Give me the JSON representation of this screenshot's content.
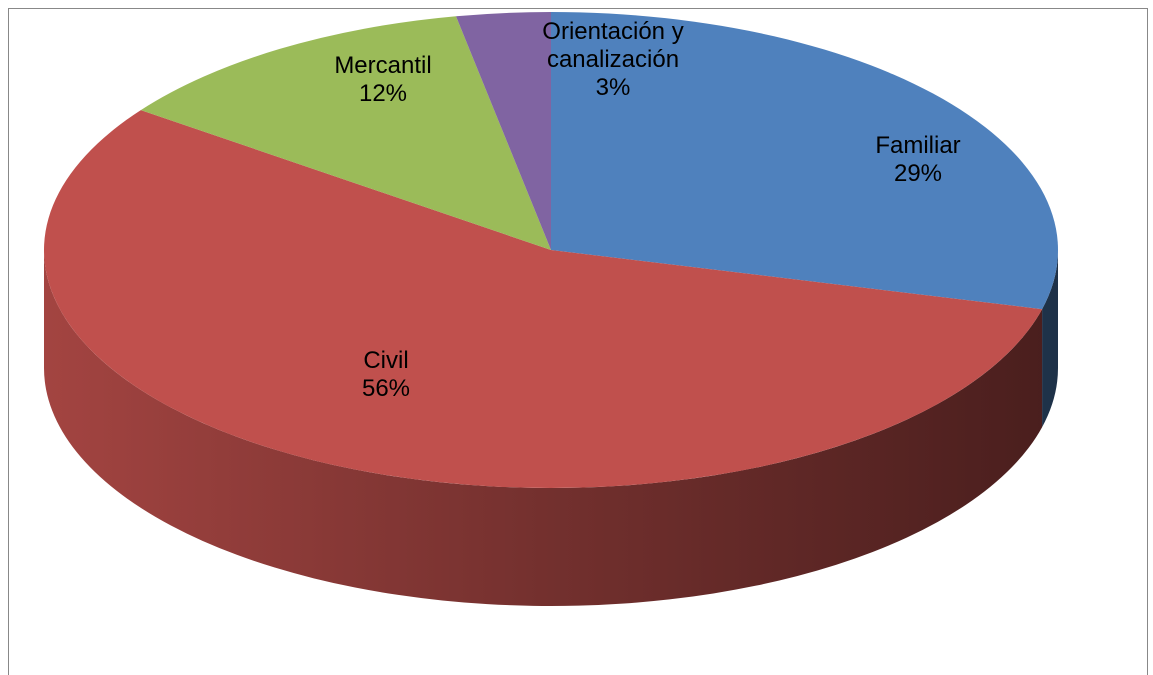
{
  "chart_data": {
    "type": "pie",
    "three_d": true,
    "categories": [
      "Familiar",
      "Civil",
      "Mercantil",
      "Orientación y canalización"
    ],
    "values": [
      29,
      56,
      12,
      3
    ],
    "value_labels": [
      "29%",
      "56%",
      "12%",
      "3%"
    ],
    "colors": [
      "#4f81bd",
      "#c0504d",
      "#9bbb59",
      "#8064a2"
    ]
  }
}
